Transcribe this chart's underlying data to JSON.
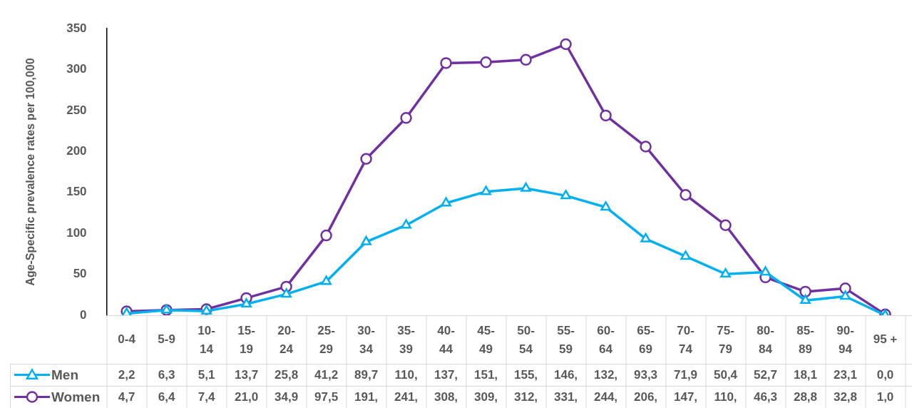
{
  "chart_data": {
    "type": "line",
    "ylabel": "Age-Specific prevalence rates per 100,000",
    "categories": [
      "0-4",
      "5-9",
      "10-14",
      "15-19",
      "20-24",
      "25-29",
      "30-34",
      "35-39",
      "40-44",
      "45-49",
      "50-54",
      "55-59",
      "60-64",
      "65-69",
      "70-74",
      "75-79",
      "80-84",
      "85-89",
      "90-94",
      "95 +"
    ],
    "ylim": [
      0,
      350
    ],
    "legend": "bottom left",
    "yticks": [
      0,
      50,
      100,
      150,
      200,
      250,
      300,
      350
    ],
    "grid": false,
    "series": [
      {
        "name": "Men",
        "color": "#00b0f0",
        "marker": "triangle",
        "values": [
          2.2,
          6.3,
          5.1,
          13.7,
          25.8,
          41.2,
          89.7,
          110,
          137,
          151,
          155,
          146,
          132,
          93.3,
          71.9,
          50.4,
          52.7,
          18.1,
          23.1,
          0.0
        ],
        "value_labels": [
          "2,2",
          "6,3",
          "5,1",
          "13,7",
          "25,8",
          "41,2",
          "89,7",
          "110,",
          "137,",
          "151,",
          "155,",
          "146,",
          "132,",
          "93,3",
          "71,9",
          "50,4",
          "52,7",
          "18,1",
          "23,1",
          "0,0"
        ]
      },
      {
        "name": "Women",
        "color": "#7030a0",
        "marker": "circle",
        "values": [
          4.7,
          6.4,
          7.4,
          21.0,
          34.9,
          97.5,
          191,
          241,
          308,
          309,
          312,
          331,
          244,
          206,
          147,
          110,
          46.3,
          28.8,
          32.8,
          1.0
        ],
        "value_labels": [
          "4,7",
          "6,4",
          "7,4",
          "21,0",
          "34,9",
          "97,5",
          "191,",
          "241,",
          "308,",
          "309,",
          "312,",
          "331,",
          "244,",
          "206,",
          "147,",
          "110,",
          "46,3",
          "28,8",
          "32,8",
          "1,0"
        ]
      }
    ]
  }
}
